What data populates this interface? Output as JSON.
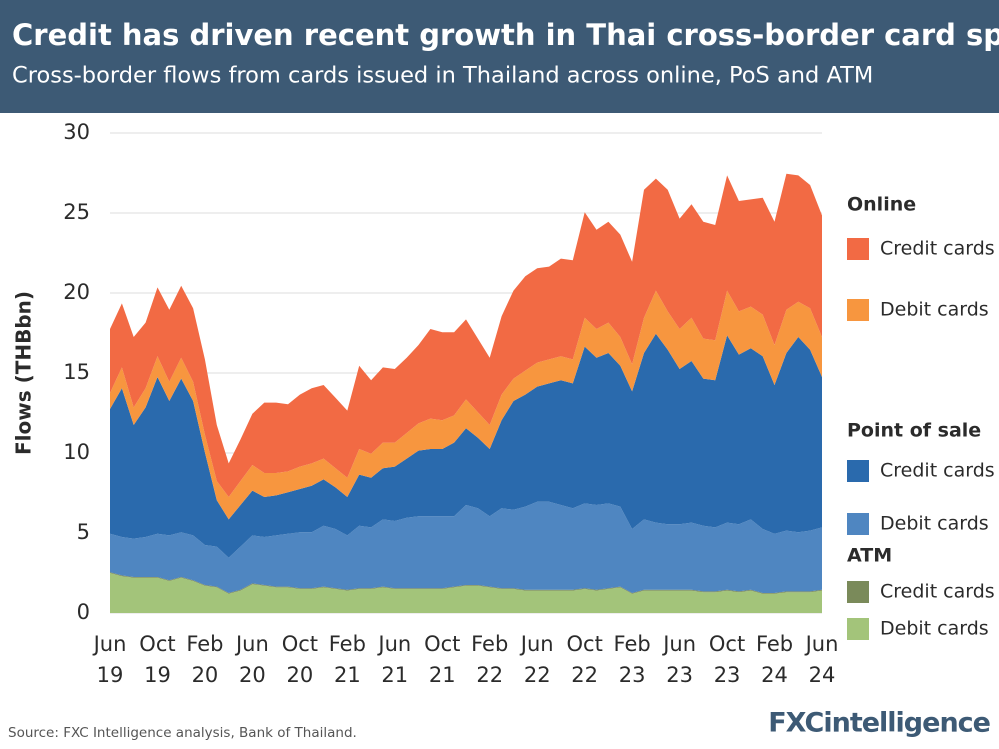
{
  "chart_data": {
    "type": "stacked_area",
    "title": "Credit has driven recent growth in Thai cross-border card spend",
    "subtitle": "Cross-border flows from cards issued in Thailand across online, PoS and ATM",
    "y_label": "Flows (THBbn)",
    "source": "Source: FXC Intelligence analysis, Bank of Thailand.",
    "logo": "FXCintelligence",
    "categories": [
      "Jun 19",
      null,
      null,
      null,
      "Oct 19",
      null,
      null,
      null,
      "Feb 20",
      null,
      null,
      null,
      "Jun 20",
      null,
      null,
      null,
      "Oct 20",
      null,
      null,
      null,
      "Feb 21",
      null,
      null,
      null,
      "Jun 21",
      null,
      null,
      null,
      "Oct 21",
      null,
      null,
      null,
      "Feb 22",
      null,
      null,
      null,
      "Jun 22",
      null,
      null,
      null,
      "Oct 22",
      null,
      null,
      null,
      "Feb 23",
      null,
      null,
      null,
      "Jun 23",
      null,
      null,
      null,
      "Oct 23",
      null,
      null,
      null,
      "Feb 24",
      null,
      null,
      null,
      "Jun 24"
    ],
    "ylim": [
      0,
      30
    ],
    "yticks": [
      0,
      5,
      10,
      15,
      20,
      25,
      30
    ],
    "grid": true,
    "series": [
      {
        "group": "Online",
        "name": "Credit cards",
        "color": "#f26a44",
        "values": [
          4.0,
          4.0,
          4.4,
          4.1,
          4.3,
          4.5,
          4.5,
          4.6,
          4.7,
          3.5,
          2.1,
          2.6,
          3.2,
          4.4,
          4.4,
          4.2,
          4.5,
          4.7,
          4.6,
          4.4,
          4.2,
          5.2,
          4.6,
          4.7,
          4.6,
          4.7,
          4.9,
          5.6,
          5.5,
          5.2,
          5.0,
          4.6,
          4.2,
          4.9,
          5.5,
          5.9,
          5.9,
          5.8,
          6.1,
          6.2,
          6.6,
          6.2,
          6.3,
          6.4,
          6.4,
          8.0,
          7.0,
          7.6,
          6.9,
          7.1,
          7.3,
          7.2,
          7.2,
          6.9,
          6.7,
          7.3,
          7.7,
          8.5,
          7.9,
          7.7,
          7.6
        ]
      },
      {
        "group": null,
        "name": "Debit cards",
        "color": "#f7963f",
        "values": [
          1.0,
          1.3,
          1.1,
          1.2,
          1.3,
          1.2,
          1.3,
          1.2,
          1.1,
          1.2,
          1.4,
          1.5,
          1.6,
          1.5,
          1.4,
          1.3,
          1.4,
          1.4,
          1.3,
          1.2,
          1.2,
          1.6,
          1.5,
          1.6,
          1.5,
          1.6,
          1.7,
          1.9,
          1.8,
          1.7,
          1.8,
          1.6,
          1.5,
          1.6,
          1.4,
          1.5,
          1.5,
          1.5,
          1.5,
          1.5,
          1.8,
          1.8,
          1.9,
          1.8,
          1.7,
          2.2,
          2.7,
          2.4,
          2.5,
          2.7,
          2.5,
          2.5,
          2.8,
          2.7,
          2.6,
          2.6,
          2.5,
          2.7,
          2.2,
          2.6,
          2.5
        ]
      },
      {
        "group": "Point of sale",
        "name": "Credit cards",
        "color": "#2a6aad",
        "values": [
          7.8,
          9.3,
          7.1,
          8.1,
          9.8,
          8.4,
          9.6,
          8.4,
          5.8,
          2.9,
          2.4,
          2.6,
          2.8,
          2.5,
          2.5,
          2.6,
          2.7,
          2.9,
          2.9,
          2.6,
          2.4,
          3.2,
          3.1,
          3.2,
          3.4,
          3.7,
          4.1,
          4.2,
          4.2,
          4.6,
          4.8,
          4.4,
          4.2,
          5.5,
          6.8,
          7.0,
          7.2,
          7.4,
          7.8,
          7.8,
          9.8,
          9.2,
          9.4,
          8.8,
          8.6,
          10.4,
          11.8,
          10.9,
          9.7,
          10.1,
          9.2,
          9.2,
          11.7,
          10.6,
          10.7,
          10.8,
          9.3,
          11.1,
          12.2,
          11.3,
          9.4
        ]
      },
      {
        "group": null,
        "name": "Debit cards",
        "color": "#4f86c1",
        "values": [
          2.4,
          2.4,
          2.4,
          2.5,
          2.7,
          2.8,
          2.8,
          2.8,
          2.5,
          2.5,
          2.2,
          2.7,
          3.0,
          3.0,
          3.2,
          3.3,
          3.5,
          3.5,
          3.8,
          3.7,
          3.4,
          3.9,
          3.8,
          4.2,
          4.2,
          4.4,
          4.5,
          4.5,
          4.5,
          4.4,
          5.0,
          4.8,
          4.4,
          5.0,
          4.9,
          5.2,
          5.5,
          5.5,
          5.3,
          5.1,
          5.3,
          5.3,
          5.3,
          5.0,
          4.0,
          4.4,
          4.2,
          4.1,
          4.1,
          4.2,
          4.1,
          4.0,
          4.2,
          4.2,
          4.4,
          4.0,
          3.7,
          3.8,
          3.7,
          3.8,
          3.9
        ]
      },
      {
        "group": "ATM",
        "name": "Credit cards",
        "color": "#7a8a5a",
        "values": [
          0.05,
          0.05,
          0.05,
          0.05,
          0.05,
          0.05,
          0.05,
          0.05,
          0.05,
          0.05,
          0.05,
          0.05,
          0.05,
          0.05,
          0.05,
          0.05,
          0.05,
          0.05,
          0.05,
          0.05,
          0.05,
          0.05,
          0.05,
          0.05,
          0.05,
          0.05,
          0.05,
          0.05,
          0.05,
          0.05,
          0.05,
          0.05,
          0.05,
          0.05,
          0.05,
          0.05,
          0.05,
          0.05,
          0.05,
          0.05,
          0.05,
          0.05,
          0.05,
          0.05,
          0.05,
          0.05,
          0.05,
          0.05,
          0.05,
          0.05,
          0.05,
          0.05,
          0.05,
          0.05,
          0.05,
          0.05,
          0.05,
          0.05,
          0.05,
          0.05,
          0.05
        ]
      },
      {
        "group": null,
        "name": "Debit cards",
        "color": "#a3c47a",
        "values": [
          2.5,
          2.3,
          2.2,
          2.2,
          2.2,
          2.0,
          2.2,
          2.0,
          1.7,
          1.6,
          1.2,
          1.4,
          1.8,
          1.7,
          1.6,
          1.6,
          1.5,
          1.5,
          1.6,
          1.5,
          1.4,
          1.5,
          1.5,
          1.6,
          1.5,
          1.5,
          1.5,
          1.5,
          1.5,
          1.6,
          1.7,
          1.7,
          1.6,
          1.5,
          1.5,
          1.4,
          1.4,
          1.4,
          1.4,
          1.4,
          1.5,
          1.4,
          1.5,
          1.6,
          1.2,
          1.4,
          1.4,
          1.4,
          1.4,
          1.4,
          1.3,
          1.3,
          1.4,
          1.3,
          1.4,
          1.2,
          1.2,
          1.3,
          1.3,
          1.3,
          1.4
        ]
      }
    ]
  }
}
